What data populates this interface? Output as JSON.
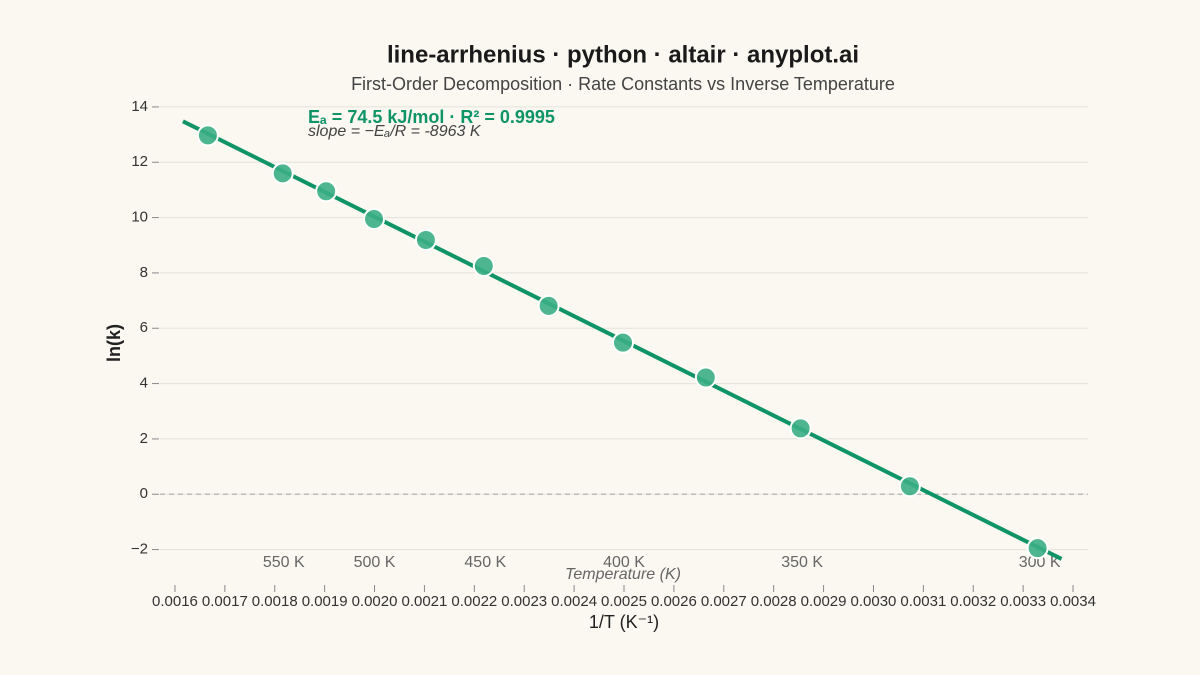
{
  "chart_data": {
    "type": "scatter",
    "title": "line-arrhenius · python · altair · anyplot.ai",
    "subtitle": "First-Order Decomposition · Rate Constants vs Inverse Temperature",
    "x_label": "1/T (K⁻¹)",
    "y_label": "ln(k)",
    "annotation": "Eₐ = 74.5 kJ/mol · R² = 0.9995",
    "annotation_2": "slope = −Eₐ/R = -8963 K",
    "secondary_x_label": "Temperature (K)",
    "x": [
      0.001666,
      0.001816,
      0.001903,
      0.001999,
      0.002103,
      0.002219,
      0.002349,
      0.002498,
      0.002664,
      0.002854,
      0.003073,
      0.003329
    ],
    "values": [
      12.97,
      11.6,
      10.95,
      9.95,
      9.19,
      8.25,
      6.81,
      5.48,
      4.22,
      2.38,
      0.29,
      -1.95
    ],
    "color": "#3aae85",
    "fit": {
      "x": [
        0.001616,
        0.003377
      ],
      "values": [
        13.48,
        -2.34
      ],
      "color": "#0f9468"
    },
    "hline": 0,
    "xlim": [
      0.00157,
      0.00343
    ],
    "ylim": [
      -3.1,
      14.25
    ],
    "xticks": [
      0.0016,
      0.0017,
      0.0018,
      0.0019,
      {
        "value": 0.002,
        "label": "0.0020"
      },
      0.0021,
      0.0022,
      0.0023,
      0.0024,
      0.0025,
      0.0026,
      0.0027,
      0.0028,
      0.0029,
      {
        "value": 0.003,
        "label": "0.0030"
      },
      0.0031,
      0.0032,
      0.0033,
      0.0034
    ],
    "yticks": [
      {
        "value": -2,
        "label": "−2"
      },
      0,
      2,
      4,
      6,
      8,
      10,
      12,
      14
    ],
    "secondary_xticks": [
      {
        "value": 0.001818,
        "label": "550 K"
      },
      {
        "value": 0.002,
        "label": "500 K"
      },
      {
        "value": 0.002222,
        "label": "450 K"
      },
      {
        "value": 0.0025,
        "label": "400 K"
      },
      {
        "value": 0.002857,
        "label": "350 K"
      },
      {
        "value": 0.003333,
        "label": "300 K"
      }
    ],
    "grid": true
  }
}
